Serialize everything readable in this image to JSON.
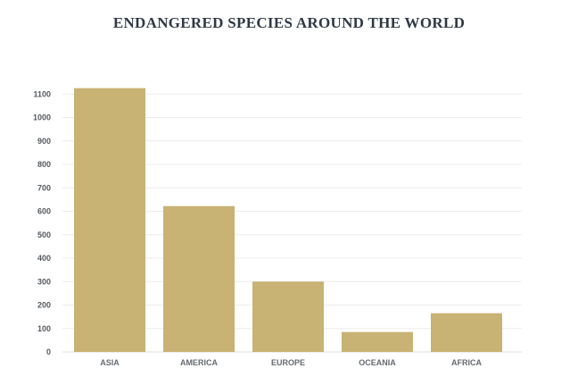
{
  "chart_data": {
    "type": "bar",
    "title": "ENDANGERED SPECIES AROUND THE WORLD",
    "categories": [
      "ASIA",
      "AMERICA",
      "EUROPE",
      "OCEANIA",
      "AFRICA"
    ],
    "values": [
      1125,
      622,
      300,
      85,
      165
    ],
    "yticks": [
      0,
      100,
      200,
      300,
      400,
      500,
      600,
      700,
      800,
      900,
      1000,
      1100
    ],
    "ylim": [
      0,
      1100
    ],
    "grid": true,
    "bar_color": "#c8b274",
    "grid_color": "#ececec",
    "xlabel": "",
    "ylabel": ""
  }
}
